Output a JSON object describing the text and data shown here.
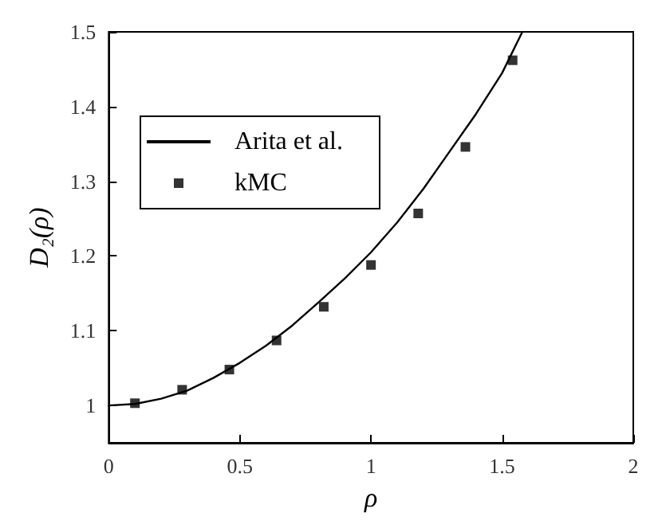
{
  "chart_data": {
    "type": "scatter",
    "xlabel": "ρ",
    "ylabel": "D₂(ρ)",
    "xlim": [
      0,
      2
    ],
    "ylim": [
      0.95,
      1.5
    ],
    "xticks": [
      0,
      0.5,
      1,
      1.5,
      2
    ],
    "yticks": [
      1,
      1.1,
      1.2,
      1.3,
      1.4,
      1.5
    ],
    "grid": false,
    "legend": "top left",
    "marker": "square",
    "series": [
      {
        "name": "Arita et al.",
        "type": "line",
        "color": "#000000",
        "line_style": "solid",
        "marker": "none",
        "x": [
          0,
          0.1,
          0.2,
          0.3,
          0.4,
          0.5,
          0.6,
          0.7,
          0.8,
          0.9,
          1.0,
          1.1,
          1.2,
          1.3,
          1.4,
          1.5,
          1.577
        ],
        "values": [
          1,
          1.002,
          1.009,
          1.02,
          1.037,
          1.057,
          1.08,
          1.107,
          1.138,
          1.17,
          1.205,
          1.245,
          1.29,
          1.34,
          1.39,
          1.445,
          1.5
        ]
      },
      {
        "name": "kMC",
        "color": "#000000",
        "x": [
          0.1,
          0.28,
          0.46,
          0.64,
          0.82,
          1.0,
          1.18,
          1.36,
          1.54
        ],
        "values": [
          1.003,
          1.021,
          1.048,
          1.087,
          1.132,
          1.188,
          1.257,
          1.346,
          1.462
        ]
      }
    ]
  }
}
